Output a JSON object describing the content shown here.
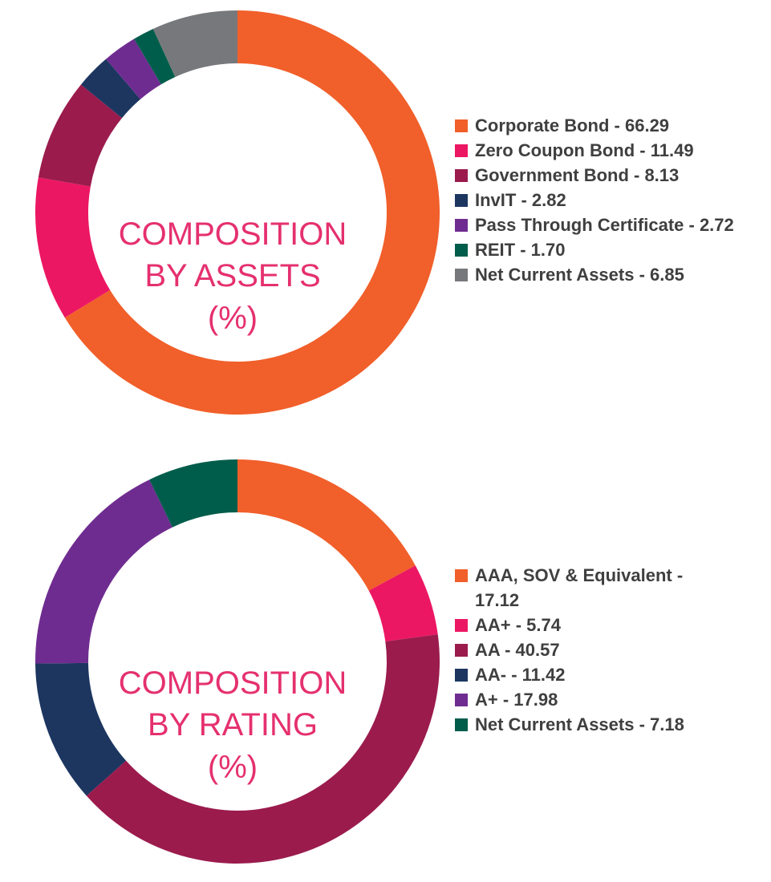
{
  "colors": {
    "center_text": "#E5306F",
    "legend_text": "#3f3f3f"
  },
  "chart_data": [
    {
      "type": "pie",
      "donut": true,
      "title_lines": [
        "COMPOSITION",
        "BY ASSETS",
        "(%)"
      ],
      "legend_placement": "right",
      "slices": [
        {
          "label": "Corporate Bond",
          "value": 66.29,
          "text": "Corporate Bond - 66.29",
          "color": "#F15F2A"
        },
        {
          "label": "Zero Coupon Bond",
          "value": 11.49,
          "text": "Zero Coupon Bond - 11.49",
          "color": "#EC1763"
        },
        {
          "label": "Government Bond",
          "value": 8.13,
          "text": "Government Bond - 8.13",
          "color": "#9B1B4D"
        },
        {
          "label": "InvIT",
          "value": 2.82,
          "text": "InvIT - 2.82",
          "color": "#1C3660"
        },
        {
          "label": "Pass Through Certificate",
          "value": 2.72,
          "text": "Pass Through Certificate - 2.72",
          "color": "#6F2C90"
        },
        {
          "label": "REIT",
          "value": 1.7,
          "text": "REIT - 1.70",
          "color": "#005D4B"
        },
        {
          "label": "Net Current Assets",
          "value": 6.85,
          "text": "Net Current Assets - 6.85",
          "color": "#77787B"
        }
      ]
    },
    {
      "type": "pie",
      "donut": true,
      "title_lines": [
        "COMPOSITION",
        "BY RATING",
        "(%)"
      ],
      "legend_placement": "right",
      "slices": [
        {
          "label": "AAA, SOV & Equivalent",
          "value": 17.12,
          "text": "AAA, SOV & Equivalent - 17.12",
          "color": "#F15F2A"
        },
        {
          "label": "AA+",
          "value": 5.74,
          "text": "AA+ - 5.74",
          "color": "#EC1763"
        },
        {
          "label": "AA",
          "value": 40.57,
          "text": "AA - 40.57",
          "color": "#9B1B4D"
        },
        {
          "label": "AA-",
          "value": 11.42,
          "text": "AA- - 11.42",
          "color": "#1C3660"
        },
        {
          "label": "A+",
          "value": 17.98,
          "text": "A+ - 17.98",
          "color": "#6F2C90"
        },
        {
          "label": "Net Current Assets",
          "value": 7.18,
          "text": "Net Current Assets - 7.18",
          "color": "#005D4B"
        }
      ]
    }
  ]
}
